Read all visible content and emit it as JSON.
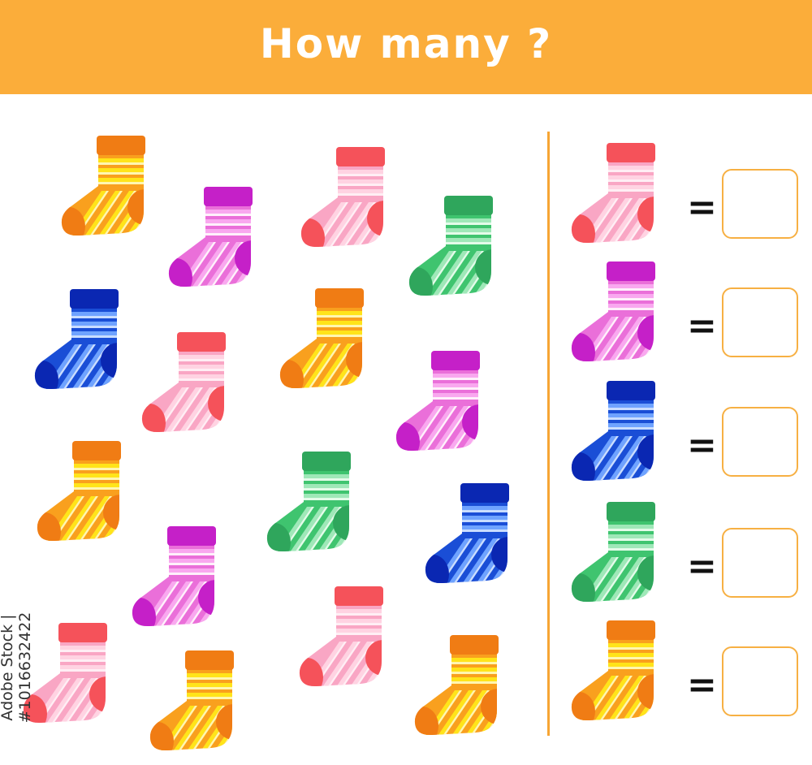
{
  "header": {
    "title": "How many ?"
  },
  "watermark": "Adobe Stock | #1016632422",
  "colors": {
    "header": "#fbad3a",
    "divider": "#f7a534",
    "box_border": "#f7b043"
  },
  "palettes": {
    "orange": {
      "dark": "#f07c14",
      "base": "#f9a01e",
      "s1": "#ffe41a",
      "s2": "#fff6b0"
    },
    "purple": {
      "dark": "#c520c8",
      "base": "#ea6fd9",
      "s1": "#f9a8ef",
      "s2": "#fff0fb"
    },
    "pink": {
      "dark": "#f5525a",
      "base": "#f9a6c4",
      "s1": "#ffd3e2",
      "s2": "#ffeef4"
    },
    "green": {
      "dark": "#2fa65c",
      "base": "#3fc46f",
      "s1": "#9fe8b8",
      "s2": "#e3fbe9"
    },
    "blue": {
      "dark": "#0a27b2",
      "base": "#1a4ed6",
      "s1": "#6fa3ff",
      "s2": "#c9ddff"
    }
  },
  "picture_socks": [
    "orange",
    "purple",
    "pink",
    "green",
    "blue",
    "pink",
    "orange",
    "purple",
    "orange",
    "green",
    "blue",
    "purple",
    "pink",
    "pink",
    "orange",
    "orange"
  ],
  "answer_rows": [
    {
      "sock": "pink",
      "equals": "="
    },
    {
      "sock": "purple",
      "equals": "="
    },
    {
      "sock": "blue",
      "equals": "="
    },
    {
      "sock": "green",
      "equals": "="
    },
    {
      "sock": "orange",
      "equals": "="
    }
  ]
}
